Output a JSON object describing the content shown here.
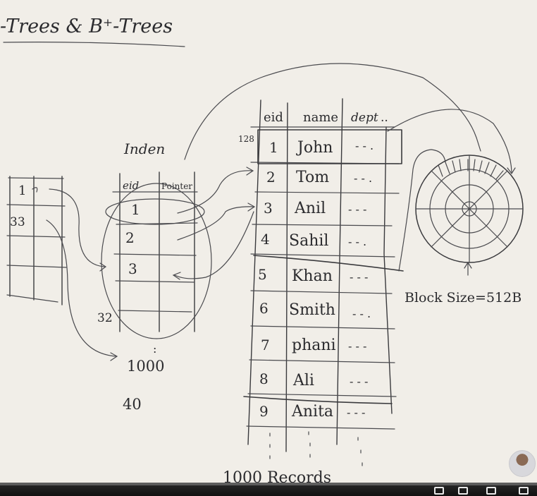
{
  "title": "-Trees & B⁺-Trees",
  "index_label": "Inden",
  "left_table": {
    "rows": [
      "1",
      "33",
      "",
      ""
    ]
  },
  "index_table": {
    "headers": [
      "eid",
      "Pointer"
    ],
    "rows": [
      "1",
      "2",
      "3"
    ],
    "below": "32",
    "dots": ":",
    "count": "1000",
    "extra": "40"
  },
  "records": {
    "block_offset": "128",
    "headers": [
      "eid",
      "name",
      "dept"
    ],
    "header_dept_suffix": "..",
    "rows": [
      {
        "eid": "1",
        "name": "John",
        "dept": "- - ."
      },
      {
        "eid": "2",
        "name": "Tom",
        "dept": "- - ."
      },
      {
        "eid": "3",
        "name": "Anil",
        "dept": "- - -"
      },
      {
        "eid": "4",
        "name": "Sahil",
        "dept": "- - ."
      },
      {
        "eid": "5",
        "name": "Khan",
        "dept": "- - -"
      },
      {
        "eid": "6",
        "name": "Smith",
        "dept": "- - ."
      },
      {
        "eid": "7",
        "name": "phani",
        "dept": "- - -"
      },
      {
        "eid": "8",
        "name": "Ali",
        "dept": "- - -"
      },
      {
        "eid": "9",
        "name": "Anita",
        "dept": "- - -"
      }
    ],
    "footer": "1000 Records"
  },
  "disk": {
    "label": "Block Size=512B"
  }
}
